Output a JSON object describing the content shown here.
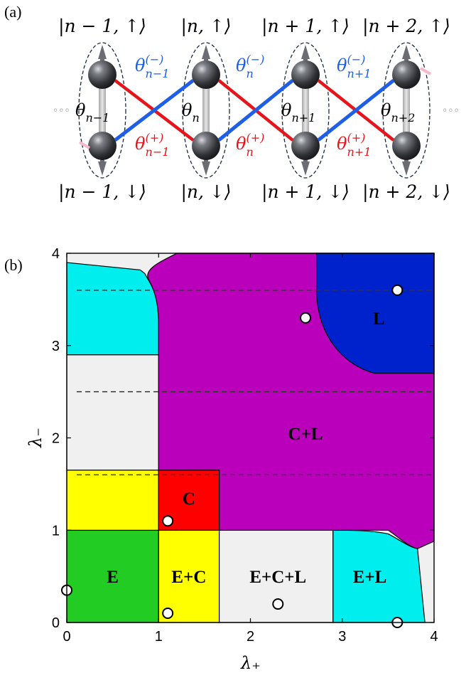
{
  "panel_a": {
    "label": "(a)",
    "kets_up": [
      "|n − 1, ↑⟩",
      "|n, ↑⟩",
      "|n + 1, ↑⟩",
      "|n + 2, ↑⟩"
    ],
    "kets_down": [
      "|n − 1, ↓⟩",
      "|n, ↓⟩",
      "|n + 1, ↓⟩",
      "|n + 2, ↓⟩"
    ],
    "theta_main": [
      "n−1",
      "n",
      "n+1",
      "n+2"
    ],
    "theta_minus": [
      "n−1",
      "n",
      "n+1"
    ],
    "theta_plus": [
      "n−1",
      "n",
      "n+1"
    ],
    "minus_sup": "(−)",
    "plus_sup": "(+)",
    "ellipsis": "◦◦◦",
    "colors": {
      "blue": "#1f5ee6",
      "red": "#e5151b",
      "sphere": "#3a3c40"
    }
  },
  "panel_b": {
    "label": "(b)",
    "xlabel": "λ₊",
    "ylabel": "λ₋",
    "xticks": [
      "0",
      "1",
      "2",
      "3",
      "4"
    ],
    "yticks": [
      "0",
      "1",
      "2",
      "3",
      "4"
    ],
    "region_labels": {
      "E": "E",
      "EC": "E+C",
      "ECL": "E+C+L",
      "EL": "E+L",
      "C": "C",
      "CL": "C+L",
      "L": "L"
    },
    "colors": {
      "E": "#22cc22",
      "EC": "#ffff00",
      "ECL": "#f0f0f0",
      "EL": "#00eeee",
      "C": "#ff0000",
      "CL": "#bb00bb",
      "L": "#0022cc",
      "gray": "#f0f0f0"
    }
  },
  "chart_data": {
    "type": "phase-diagram",
    "xlabel": "λ₊",
    "ylabel": "λ₋",
    "xlim": [
      0,
      4
    ],
    "ylim": [
      0,
      4
    ],
    "dashed_lines_y": [
      1.6,
      2.5,
      3.6
    ],
    "markers": [
      {
        "x": 0.0,
        "y": 0.35
      },
      {
        "x": 1.1,
        "y": 0.1
      },
      {
        "x": 1.1,
        "y": 1.1
      },
      {
        "x": 2.3,
        "y": 0.2
      },
      {
        "x": 3.6,
        "y": 0.0
      },
      {
        "x": 2.6,
        "y": 3.3
      },
      {
        "x": 3.6,
        "y": 3.6
      }
    ]
  }
}
